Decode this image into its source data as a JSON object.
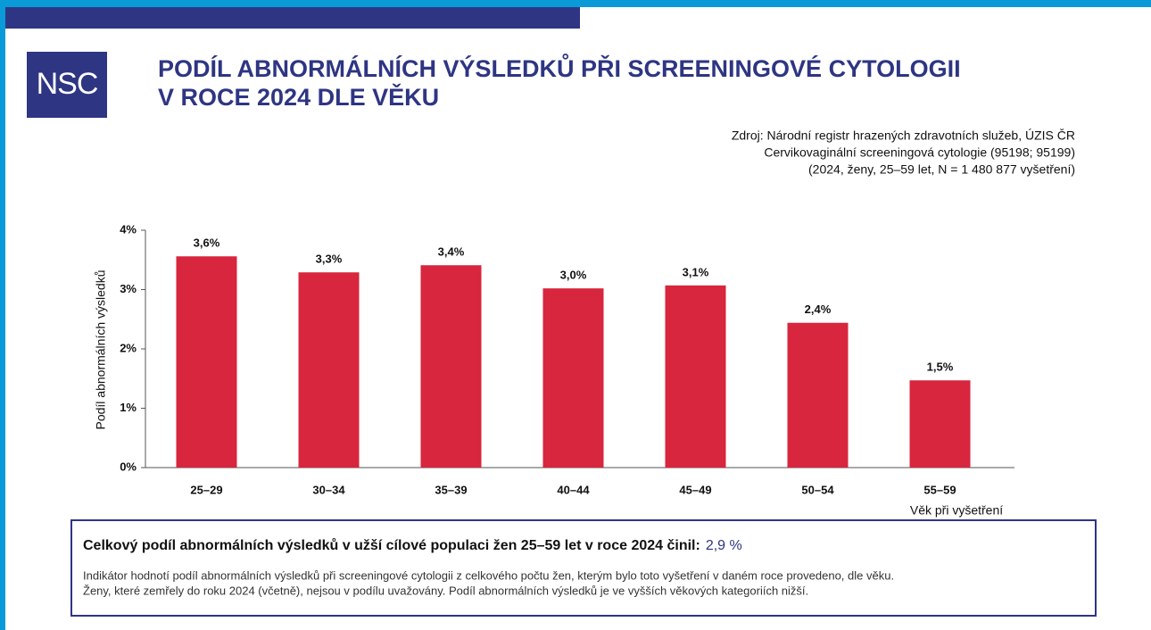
{
  "logo": "NSC",
  "header": {
    "title_lines": [
      "PODÍL ABNORMÁLNÍCH VÝSLEDKŮ PŘI SCREENINGOVÉ CYTOLOGII",
      "V ROCE 2024 DLE VĚKU"
    ],
    "source_lines": [
      "Zdroj: Národní registr hrazených zdravotních služeb, ÚZIS ČR",
      "Cervikovaginální screeningová cytologie (95198; 95199)",
      "(2024, ženy, 25–59 let, N = 1 480 877 vyšetření)"
    ]
  },
  "chart_data": {
    "type": "bar",
    "categories": [
      "25–29",
      "30–34",
      "35–39",
      "40–44",
      "45–49",
      "50–54",
      "55–59"
    ],
    "values": [
      3.56,
      3.29,
      3.41,
      3.02,
      3.07,
      2.44,
      1.47
    ],
    "value_labels": [
      "3,6%",
      "3,3%",
      "3,4%",
      "3,0%",
      "3,1%",
      "2,4%",
      "1,5%"
    ],
    "color": "#d7263d",
    "ylim": [
      0,
      4
    ],
    "yticks": [
      {
        "value": 0,
        "label": "0%"
      },
      {
        "value": 1,
        "label": "1%"
      },
      {
        "value": 2,
        "label": "2%"
      },
      {
        "value": 3,
        "label": "3%"
      },
      {
        "value": 4,
        "label": "4%"
      }
    ],
    "ylabel": "Podíl abnormálních výsledků",
    "xlabel": "Věk při vyšetření",
    "grid": false
  },
  "summary": {
    "text": "Celkový podíl abnormálních výsledků v užší cílové populaci žen 25–59 let v roce 2024 činil:",
    "value": "2,9 %",
    "note_lines": [
      "Indikátor hodnotí podíl abnormálních výsledků při screeningové cytologii z celkového počtu žen, kterým bylo toto vyšetření v daném roce provedeno, dle věku.",
      "Ženy, které zemřely do roku 2024 (včetně), nejsou v podílu uvažovány. Podíl abnormálních výsledků je ve vyšších věkových kategoriích nižší."
    ]
  }
}
